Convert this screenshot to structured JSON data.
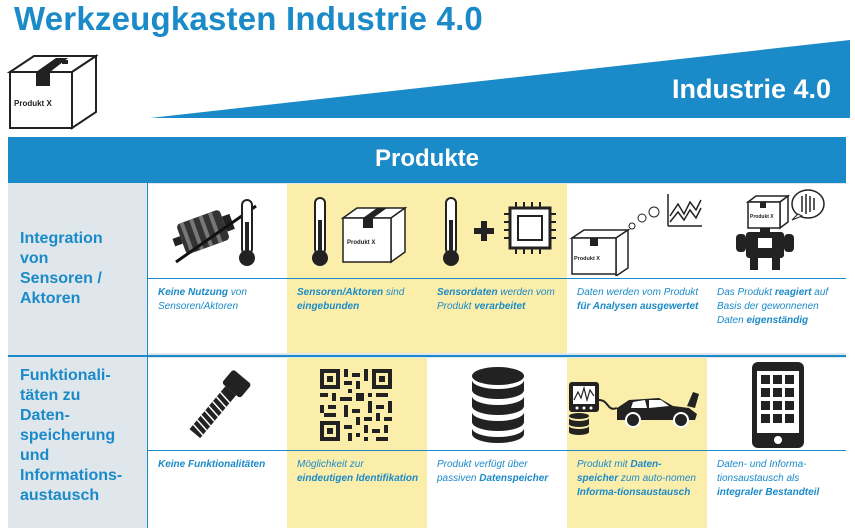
{
  "title": "Werkzeugkasten Industrie 4.0",
  "banner": "Industrie 4.0",
  "box_label": "Produkt X",
  "header": "Produkte",
  "rows": [
    {
      "label_lines": [
        "Integration",
        "von",
        "Sensoren /",
        "Aktoren"
      ],
      "cells": [
        {
          "icon": "no-sensor-icon",
          "text": [
            [
              "Keine Nutzung",
              true
            ],
            [
              " von Sensoren/Aktoren",
              false
            ]
          ]
        },
        {
          "icon": "thermometer-box-icon",
          "text": [
            [
              "Sensoren/Aktoren",
              true
            ],
            [
              " sind ",
              false
            ],
            [
              "eingebunden",
              true
            ]
          ]
        },
        {
          "icon": "thermometer-chip-icon",
          "text": [
            [
              "Sensordaten",
              true
            ],
            [
              " werden vom Produkt ",
              false
            ],
            [
              "verarbeitet",
              true
            ]
          ]
        },
        {
          "icon": "box-analysis-icon",
          "text": [
            [
              "Daten werden vom Produkt ",
              false
            ],
            [
              "für Analysen ausgewertet",
              true
            ]
          ]
        },
        {
          "icon": "robot-icon",
          "text": [
            [
              "Das Produkt ",
              false
            ],
            [
              "reagiert",
              true
            ],
            [
              " auf Basis der gewonnenen Daten ",
              false
            ],
            [
              "eigenständig",
              true
            ]
          ]
        }
      ]
    },
    {
      "label_lines": [
        "Funktionali-",
        "täten zu",
        "Daten-",
        "speicherung",
        "und",
        "Informations-",
        "austausch"
      ],
      "cells": [
        {
          "icon": "bolt-icon",
          "text": [
            [
              "Keine Funktionalitäten",
              true
            ]
          ]
        },
        {
          "icon": "qr-code-icon",
          "text": [
            [
              "Möglichkeit zur ",
              false
            ],
            [
              "eindeutigen Identifikation",
              true
            ]
          ]
        },
        {
          "icon": "database-icon",
          "text": [
            [
              "Produkt verfügt über passiven ",
              false
            ],
            [
              "Datenspeicher",
              true
            ]
          ]
        },
        {
          "icon": "car-diagnostic-icon",
          "text": [
            [
              "Produkt mit ",
              false
            ],
            [
              "Daten-speicher",
              true
            ],
            [
              " zum auto-nomen ",
              false
            ],
            [
              "Informa-tionsaustausch",
              true
            ]
          ]
        },
        {
          "icon": "smartphone-icon",
          "text": [
            [
              "Daten- und Informa-tionsaustausch als ",
              false
            ],
            [
              "integraler Bestandteil",
              true
            ]
          ]
        }
      ]
    }
  ]
}
